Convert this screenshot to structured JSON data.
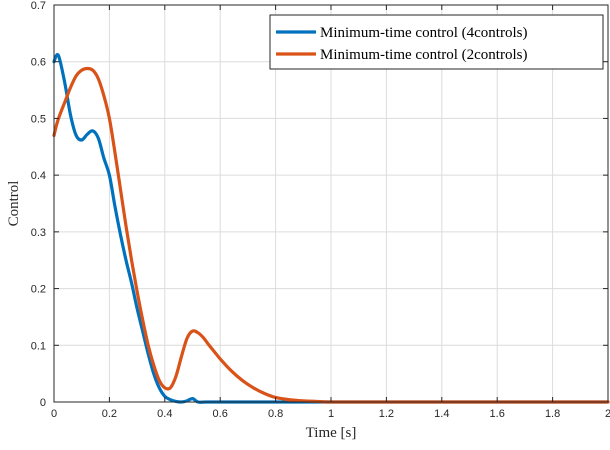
{
  "chart_data": {
    "type": "line",
    "xlabel": "Time [s]",
    "ylabel": "Control",
    "xlim": [
      0,
      2
    ],
    "ylim": [
      0,
      0.7
    ],
    "xticks": [
      0,
      0.2,
      0.4,
      0.6,
      0.8,
      1,
      1.2,
      1.4,
      1.6,
      1.8,
      2
    ],
    "xtick_labels": [
      "0",
      "0.2",
      "0.4",
      "0.6",
      "0.8",
      "1",
      "1.2",
      "1.4",
      "1.6",
      "1.8",
      "2"
    ],
    "yticks": [
      0,
      0.1,
      0.2,
      0.3,
      0.4,
      0.5,
      0.6,
      0.7
    ],
    "ytick_labels": [
      "0",
      "0.1",
      "0.2",
      "0.3",
      "0.4",
      "0.5",
      "0.6",
      "0.7"
    ],
    "grid": true,
    "legend_position": "top-right",
    "series": [
      {
        "name": "Minimum-time control (4controls)",
        "color": "#0072BD",
        "x": [
          0,
          0.01,
          0.02,
          0.04,
          0.06,
          0.08,
          0.1,
          0.12,
          0.14,
          0.16,
          0.18,
          0.2,
          0.22,
          0.24,
          0.26,
          0.28,
          0.3,
          0.32,
          0.34,
          0.36,
          0.38,
          0.4,
          0.42,
          0.44,
          0.46,
          0.48,
          0.5,
          0.52,
          0.55,
          0.6,
          0.8,
          1.0,
          1.2,
          1.4,
          1.6,
          1.8,
          2.0
        ],
        "y": [
          0.6,
          0.612,
          0.605,
          0.56,
          0.505,
          0.47,
          0.462,
          0.472,
          0.478,
          0.465,
          0.43,
          0.4,
          0.345,
          0.295,
          0.25,
          0.21,
          0.165,
          0.125,
          0.085,
          0.05,
          0.025,
          0.01,
          0.004,
          0.001,
          0.0,
          0.002,
          0.006,
          0.0,
          0.0,
          0.0,
          0.0,
          0.0,
          0.0,
          0.0,
          0.0,
          0.0,
          0.0
        ]
      },
      {
        "name": "Minimum-time control (2controls)",
        "color": "#D95319",
        "x": [
          0,
          0.01,
          0.02,
          0.04,
          0.06,
          0.08,
          0.1,
          0.12,
          0.14,
          0.16,
          0.18,
          0.2,
          0.22,
          0.24,
          0.26,
          0.28,
          0.3,
          0.32,
          0.34,
          0.36,
          0.38,
          0.4,
          0.42,
          0.44,
          0.46,
          0.48,
          0.5,
          0.52,
          0.54,
          0.56,
          0.58,
          0.6,
          0.64,
          0.68,
          0.72,
          0.76,
          0.8,
          0.85,
          0.9,
          0.95,
          1.0,
          1.2,
          1.4,
          1.6,
          1.8,
          2.0
        ],
        "y": [
          0.47,
          0.49,
          0.505,
          0.53,
          0.555,
          0.575,
          0.585,
          0.588,
          0.585,
          0.57,
          0.54,
          0.5,
          0.44,
          0.375,
          0.31,
          0.25,
          0.195,
          0.145,
          0.1,
          0.065,
          0.038,
          0.025,
          0.025,
          0.045,
          0.08,
          0.112,
          0.125,
          0.122,
          0.113,
          0.1,
          0.088,
          0.076,
          0.055,
          0.038,
          0.025,
          0.015,
          0.008,
          0.004,
          0.002,
          0.001,
          0.0,
          0.0,
          0.0,
          0.0,
          0.0,
          0.0
        ]
      }
    ]
  }
}
